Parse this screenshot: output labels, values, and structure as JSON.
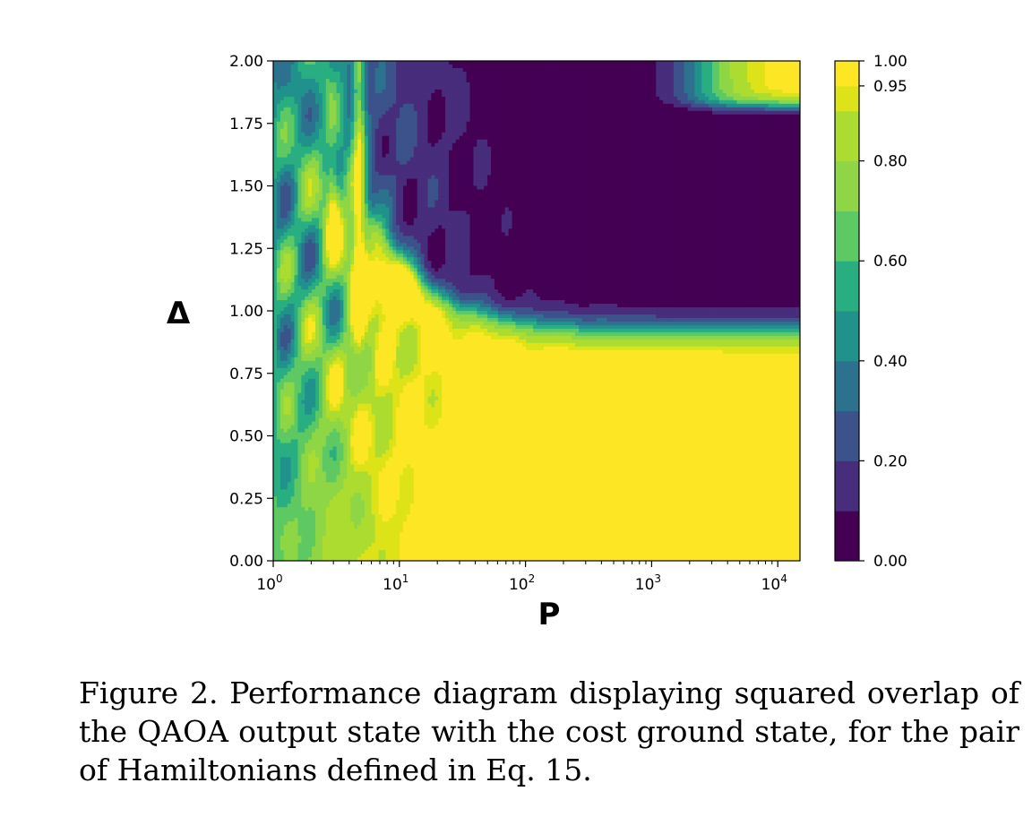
{
  "chart_data": {
    "type": "heatmap",
    "title": "",
    "xlabel": "P",
    "ylabel": "Δ",
    "x_scale": "log",
    "xlim": [
      1,
      15000
    ],
    "ylim": [
      0,
      2
    ],
    "x_ticks": [
      {
        "value": 1,
        "label": "10^0"
      },
      {
        "value": 10,
        "label": "10^1"
      },
      {
        "value": 100,
        "label": "10^2"
      },
      {
        "value": 1000,
        "label": "10^3"
      },
      {
        "value": 10000,
        "label": "10^4"
      }
    ],
    "y_ticks": [
      {
        "value": 0.0,
        "label": "0.00"
      },
      {
        "value": 0.25,
        "label": "0.25"
      },
      {
        "value": 0.5,
        "label": "0.50"
      },
      {
        "value": 0.75,
        "label": "0.75"
      },
      {
        "value": 1.0,
        "label": "1.00"
      },
      {
        "value": 1.25,
        "label": "1.25"
      },
      {
        "value": 1.5,
        "label": "1.50"
      },
      {
        "value": 1.75,
        "label": "1.75"
      },
      {
        "value": 2.0,
        "label": "2.00"
      }
    ],
    "colorbar": {
      "range": [
        0,
        1
      ],
      "levels": [
        0,
        0.1,
        0.2,
        0.3,
        0.4,
        0.5,
        0.6,
        0.7,
        0.8,
        0.9,
        0.95,
        1.0
      ],
      "colors": [
        "#440154",
        "#472d7b",
        "#3b528b",
        "#2c728e",
        "#21918c",
        "#28ae80",
        "#5ec962",
        "#8ed645",
        "#addc30",
        "#dde318",
        "#fde725"
      ],
      "ticks": [
        {
          "value": 0.0,
          "label": "0.00"
        },
        {
          "value": 0.2,
          "label": "0.20"
        },
        {
          "value": 0.4,
          "label": "0.40"
        },
        {
          "value": 0.6,
          "label": "0.60"
        },
        {
          "value": 0.8,
          "label": "0.80"
        },
        {
          "value": 0.95,
          "label": "0.95"
        },
        {
          "value": 1.0,
          "label": "1.00"
        }
      ]
    },
    "regions": [
      {
        "description": "Δ above ~0.92 and P above ~30: overlap near 0",
        "approx_value": 0.0
      },
      {
        "description": "Δ below ~0.9 and P above ~100: overlap near 1",
        "approx_value": 1.0
      },
      {
        "description": "Δ above ~1.82 and P above ~2000: overlap near 1",
        "approx_value": 1.0
      },
      {
        "description": "Small P, small Δ corner: overlap ~0.5",
        "approx_value": 0.5
      }
    ]
  },
  "caption": "Figure 2. Performance diagram displaying squared overlap of the QAOA output state with the cost ground state, for the pair of Hamiltonians defined in Eq. 15."
}
